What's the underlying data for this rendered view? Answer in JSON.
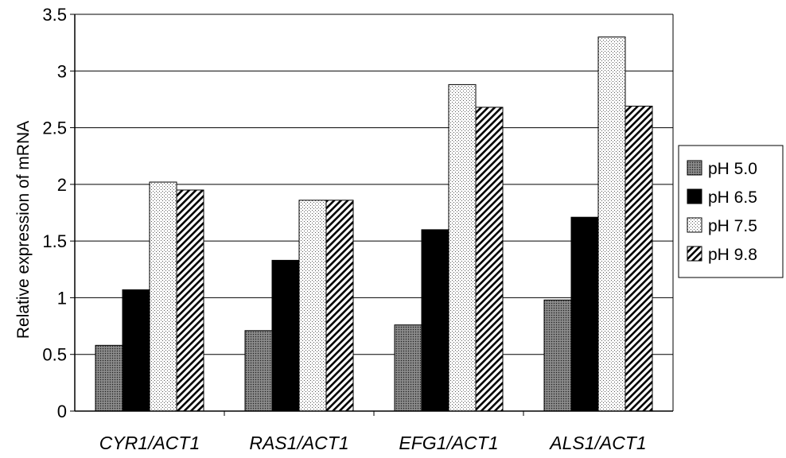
{
  "chart_data": {
    "type": "bar",
    "title": "",
    "xlabel": "",
    "ylabel": "Relative expression of mRNA",
    "ylim": [
      0,
      3.5
    ],
    "yticks": [
      0,
      0.5,
      1,
      1.5,
      2,
      2.5,
      3,
      3.5
    ],
    "ytick_labels": [
      "0",
      "0.5",
      "1",
      "1.5",
      "2",
      "2.5",
      "3",
      "3.5"
    ],
    "grid": "horizontal",
    "legend_position": "right",
    "categories": [
      "CYR1/ACT1",
      "RAS1/ACT1",
      "EFG1/ACT1",
      "ALS1/ACT1"
    ],
    "series": [
      {
        "name": "pH 5.0",
        "values": [
          0.58,
          0.71,
          0.76,
          0.98
        ],
        "pattern": "dense-dots-gray"
      },
      {
        "name": "pH 6.5",
        "values": [
          1.07,
          1.33,
          1.6,
          1.71
        ],
        "pattern": "solid-black"
      },
      {
        "name": "pH 7.5",
        "values": [
          2.02,
          1.86,
          2.88,
          3.3
        ],
        "pattern": "light-dots"
      },
      {
        "name": "pH 9.8",
        "values": [
          1.95,
          1.86,
          2.68,
          2.69
        ],
        "pattern": "diagonal-hatch"
      }
    ]
  }
}
